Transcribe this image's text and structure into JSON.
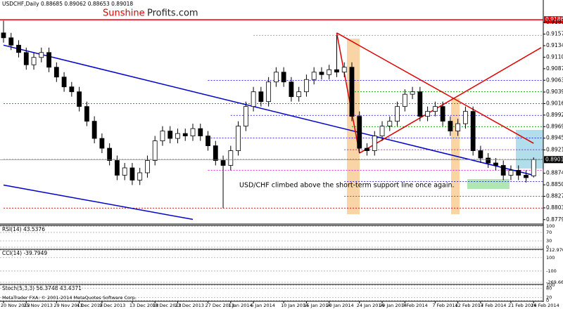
{
  "chart_data": {
    "type": "candlestick",
    "title": "USDCHF,Daily 0.88685 0.89062 0.88653 0.89018",
    "brand": {
      "first": "Sunshine",
      "second": "Profits.com"
    },
    "annotation": "USD/CHF climbed above the short-term support line once again.",
    "copyright": "MetaTrader FXA: © 2001-2014 MetaQuotes Software Corp.",
    "categories": [
      "20 Nov 2013",
      null,
      null,
      "25 Nov 2013",
      null,
      null,
      null,
      "29 Nov 2013",
      null,
      null,
      "4 Dec 2013",
      null,
      null,
      "9 Dec 2013",
      null,
      null,
      null,
      "13 Dec 2013",
      null,
      null,
      "18 Dec 2013",
      null,
      null,
      "23 Dec 2013",
      null,
      null,
      null,
      "27 Dec 2013",
      null,
      null,
      "1 Jan 2014",
      null,
      null,
      "6 Jan 2014",
      null,
      null,
      null,
      "10 Jan 2014",
      null,
      null,
      "15 Jan 2014",
      null,
      null,
      "20 Jan 2014",
      null,
      null,
      null,
      "24 Jan 2014",
      null,
      null,
      "29 Jan 2014",
      null,
      null,
      "3 Feb 2014",
      null,
      null,
      null,
      "7 Feb 2014",
      null,
      null,
      "12 Feb 2014",
      null,
      null,
      "17 Feb 2014",
      null,
      null,
      null,
      "21 Feb 2014",
      null,
      null,
      "26 Feb 2014"
    ],
    "open": [
      0.916,
      0.915,
      0.9135,
      0.912,
      0.9095,
      0.911,
      0.912,
      0.909,
      0.907,
      0.905,
      0.904,
      0.901,
      0.898,
      0.8945,
      0.8925,
      0.89,
      0.887,
      0.8885,
      0.886,
      0.8875,
      0.89,
      0.894,
      0.896,
      0.8945,
      0.8955,
      0.895,
      0.8965,
      0.895,
      0.893,
      0.89,
      0.889,
      0.892,
      0.897,
      0.901,
      0.904,
      0.902,
      0.906,
      0.908,
      0.906,
      0.903,
      0.904,
      0.9065,
      0.908,
      0.9075,
      0.9085,
      0.908,
      0.909,
      0.899,
      0.8925,
      0.892,
      0.895,
      0.897,
      0.898,
      0.901,
      0.9035,
      0.904,
      0.899,
      0.9,
      0.901,
      0.898,
      0.896,
      0.8975,
      0.9,
      0.892,
      0.8905,
      0.8895,
      0.889,
      0.887,
      0.888,
      0.887,
      0.88685
    ],
    "high": [
      0.9185,
      0.916,
      0.9145,
      0.913,
      0.912,
      0.913,
      0.913,
      0.91,
      0.908,
      0.906,
      0.905,
      0.902,
      0.899,
      0.8955,
      0.8935,
      0.891,
      0.8895,
      0.8895,
      0.8885,
      0.891,
      0.895,
      0.897,
      0.897,
      0.8965,
      0.8965,
      0.8975,
      0.8975,
      0.896,
      0.894,
      0.891,
      0.893,
      0.898,
      0.902,
      0.905,
      0.905,
      0.907,
      0.909,
      0.909,
      0.907,
      0.905,
      0.9075,
      0.909,
      0.909,
      0.9095,
      0.9155,
      0.91,
      0.91,
      0.9,
      0.8935,
      0.896,
      0.898,
      0.899,
      0.902,
      0.9045,
      0.905,
      0.905,
      0.901,
      0.902,
      0.902,
      0.899,
      0.8985,
      0.901,
      0.901,
      0.893,
      0.8915,
      0.8905,
      0.89,
      0.889,
      0.889,
      0.888,
      0.89062
    ],
    "low": [
      0.914,
      0.9125,
      0.911,
      0.9085,
      0.9085,
      0.91,
      0.908,
      0.906,
      0.904,
      0.903,
      0.9,
      0.897,
      0.8935,
      0.8915,
      0.889,
      0.886,
      0.886,
      0.885,
      0.885,
      0.8865,
      0.889,
      0.893,
      0.8935,
      0.8935,
      0.894,
      0.894,
      0.894,
      0.892,
      0.889,
      0.8803,
      0.888,
      0.891,
      0.896,
      0.9,
      0.901,
      0.901,
      0.905,
      0.905,
      0.902,
      0.902,
      0.903,
      0.9055,
      0.9065,
      0.9065,
      0.907,
      0.907,
      0.898,
      0.8915,
      0.891,
      0.891,
      0.894,
      0.896,
      0.897,
      0.9,
      0.9025,
      0.898,
      0.898,
      0.899,
      0.897,
      0.895,
      0.895,
      0.8965,
      0.891,
      0.8895,
      0.8885,
      0.888,
      0.886,
      0.886,
      0.886,
      0.8855,
      0.88653
    ],
    "close": [
      0.915,
      0.9135,
      0.912,
      0.9095,
      0.911,
      0.912,
      0.909,
      0.907,
      0.905,
      0.904,
      0.901,
      0.898,
      0.8945,
      0.8925,
      0.89,
      0.887,
      0.8885,
      0.886,
      0.8875,
      0.89,
      0.894,
      0.896,
      0.8945,
      0.8955,
      0.895,
      0.8965,
      0.895,
      0.893,
      0.89,
      0.889,
      0.892,
      0.897,
      0.901,
      0.904,
      0.902,
      0.906,
      0.908,
      0.906,
      0.903,
      0.904,
      0.9065,
      0.908,
      0.9075,
      0.9085,
      0.908,
      0.909,
      0.899,
      0.8925,
      0.892,
      0.895,
      0.897,
      0.898,
      0.901,
      0.9035,
      0.904,
      0.899,
      0.9,
      0.901,
      0.898,
      0.896,
      0.8975,
      0.9,
      0.892,
      0.8905,
      0.8895,
      0.889,
      0.887,
      0.888,
      0.887,
      0.8865,
      0.89018
    ],
    "ylim": [
      0.8772,
      0.9227
    ],
    "yticks": [
      0.91815,
      0.91575,
      {
        "value": 0.9134,
        "label": "0.91340"
      },
      0.91105,
      {
        "value": 0.9087,
        "label": "0.90870"
      },
      0.90635,
      0.90395,
      {
        "value": 0.9016,
        "label": "0.90160"
      },
      0.89925,
      {
        "value": 0.8969,
        "label": "0.89690"
      },
      0.89455,
      0.89215,
      {
        "value": 0.8874,
        "label": "0.88740"
      },
      0.88505,
      {
        "value": 0.8827,
        "label": "0.88270"
      },
      0.88035,
      0.87795
    ],
    "current_price": 0.89018,
    "resistance": {
      "value": 0.91868,
      "color": "#e00000"
    },
    "lines": [
      {
        "x": [
          0,
          70
        ],
        "y": [
          0.9135,
          0.887
        ],
        "color": "#0000cc"
      },
      {
        "x": [
          0,
          25
        ],
        "y": [
          0.885,
          0.878
        ],
        "color": "#0000cc"
      },
      {
        "x": [
          44,
          70
        ],
        "y": [
          0.916,
          0.8935
        ],
        "color": "#e00000"
      },
      {
        "x": [
          47,
          71
        ],
        "y": [
          0.8915,
          0.913
        ],
        "color": "#e00000"
      },
      {
        "x": [
          44,
          47
        ],
        "y": [
          0.916,
          0.8915
        ],
        "color": "#e00000"
      }
    ],
    "levels": [
      {
        "value": 0.9155,
        "color": "#999999",
        "from": 33
      },
      {
        "value": 0.9063,
        "color": "#0000cc",
        "from": 27
      },
      {
        "value": 0.904,
        "color": "#009900",
        "from": 46
      },
      {
        "value": 0.9016,
        "color": "#cc0000",
        "from": 0
      },
      {
        "value": 0.8992,
        "color": "#0000cc",
        "from": 30
      },
      {
        "value": 0.8969,
        "color": "#009900",
        "from": 46
      },
      {
        "value": 0.8946,
        "color": "#0000cc",
        "from": 27
      },
      {
        "value": 0.8922,
        "color": "#cc00cc",
        "from": 45
      },
      {
        "value": 0.8902,
        "color": "#000000",
        "from": 0
      },
      {
        "value": 0.888,
        "color": "#cc00cc",
        "from": 27
      },
      {
        "value": 0.8857,
        "color": "#0000cc",
        "from": 45
      },
      {
        "value": 0.8827,
        "color": "#cc00cc",
        "from": 45
      },
      {
        "value": 0.8803,
        "color": "#cc0000",
        "from": 0
      }
    ],
    "panels": [
      {
        "label": "RSI(14) 43.5376",
        "ylim": [
          0,
          100
        ],
        "yticks": [
          100,
          70,
          30,
          0
        ]
      },
      {
        "label": "CCI(14) -39.7949",
        "ylim": [
          -269.6632,
          212.9701
        ],
        "yticks": [
          212.9701,
          100,
          -100,
          -269.6632
        ]
      },
      {
        "label": "Stoch(5,3,3) 56.3748 43.4371",
        "ylim": [
          0,
          100
        ],
        "yticks": [
          100,
          80,
          20,
          0
        ]
      }
    ]
  }
}
